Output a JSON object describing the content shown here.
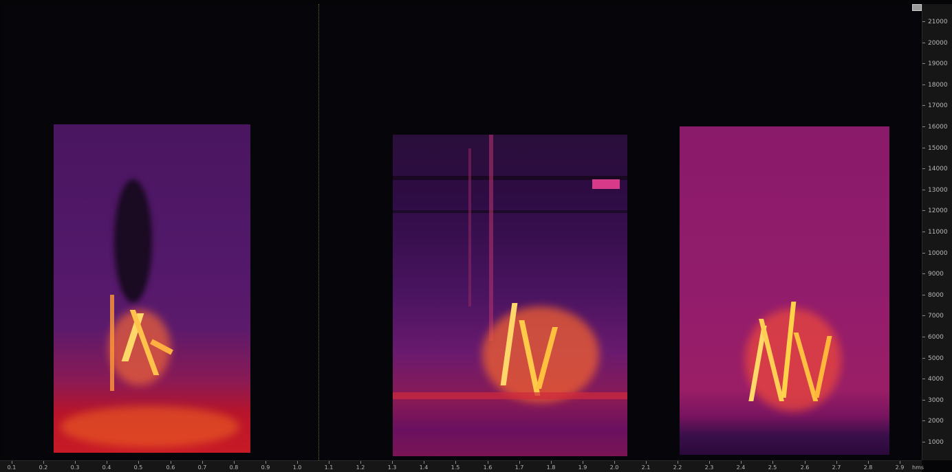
{
  "y_axis": {
    "labels": [
      "21000",
      "20000",
      "19000",
      "18000",
      "17000",
      "16000",
      "15000",
      "14000",
      "13000",
      "12000",
      "11000",
      "10000",
      "9000",
      "8000",
      "7000",
      "6000",
      "5000",
      "4000",
      "3000",
      "2000",
      "1000"
    ]
  },
  "x_axis": {
    "labels": [
      "0.1",
      "0.2",
      "0.3",
      "0.4",
      "0.5",
      "0.6",
      "0.7",
      "0.8",
      "0.9",
      "1.0",
      "1.1",
      "1.2",
      "1.3",
      "1.4",
      "1.5",
      "1.6",
      "1.7",
      "1.8",
      "1.9",
      "2.0",
      "2.1",
      "2.2",
      "2.3",
      "2.4",
      "2.5",
      "2.6",
      "2.7",
      "2.8",
      "2.9"
    ],
    "unit": "hms"
  },
  "colors": {
    "background": "#06050a",
    "low": "#3a0f5a",
    "mid": "#8a1f7a",
    "high": "#e0202a",
    "peak": "#ffd24a"
  },
  "icons": {
    "corner": "view-toggle-icon"
  }
}
